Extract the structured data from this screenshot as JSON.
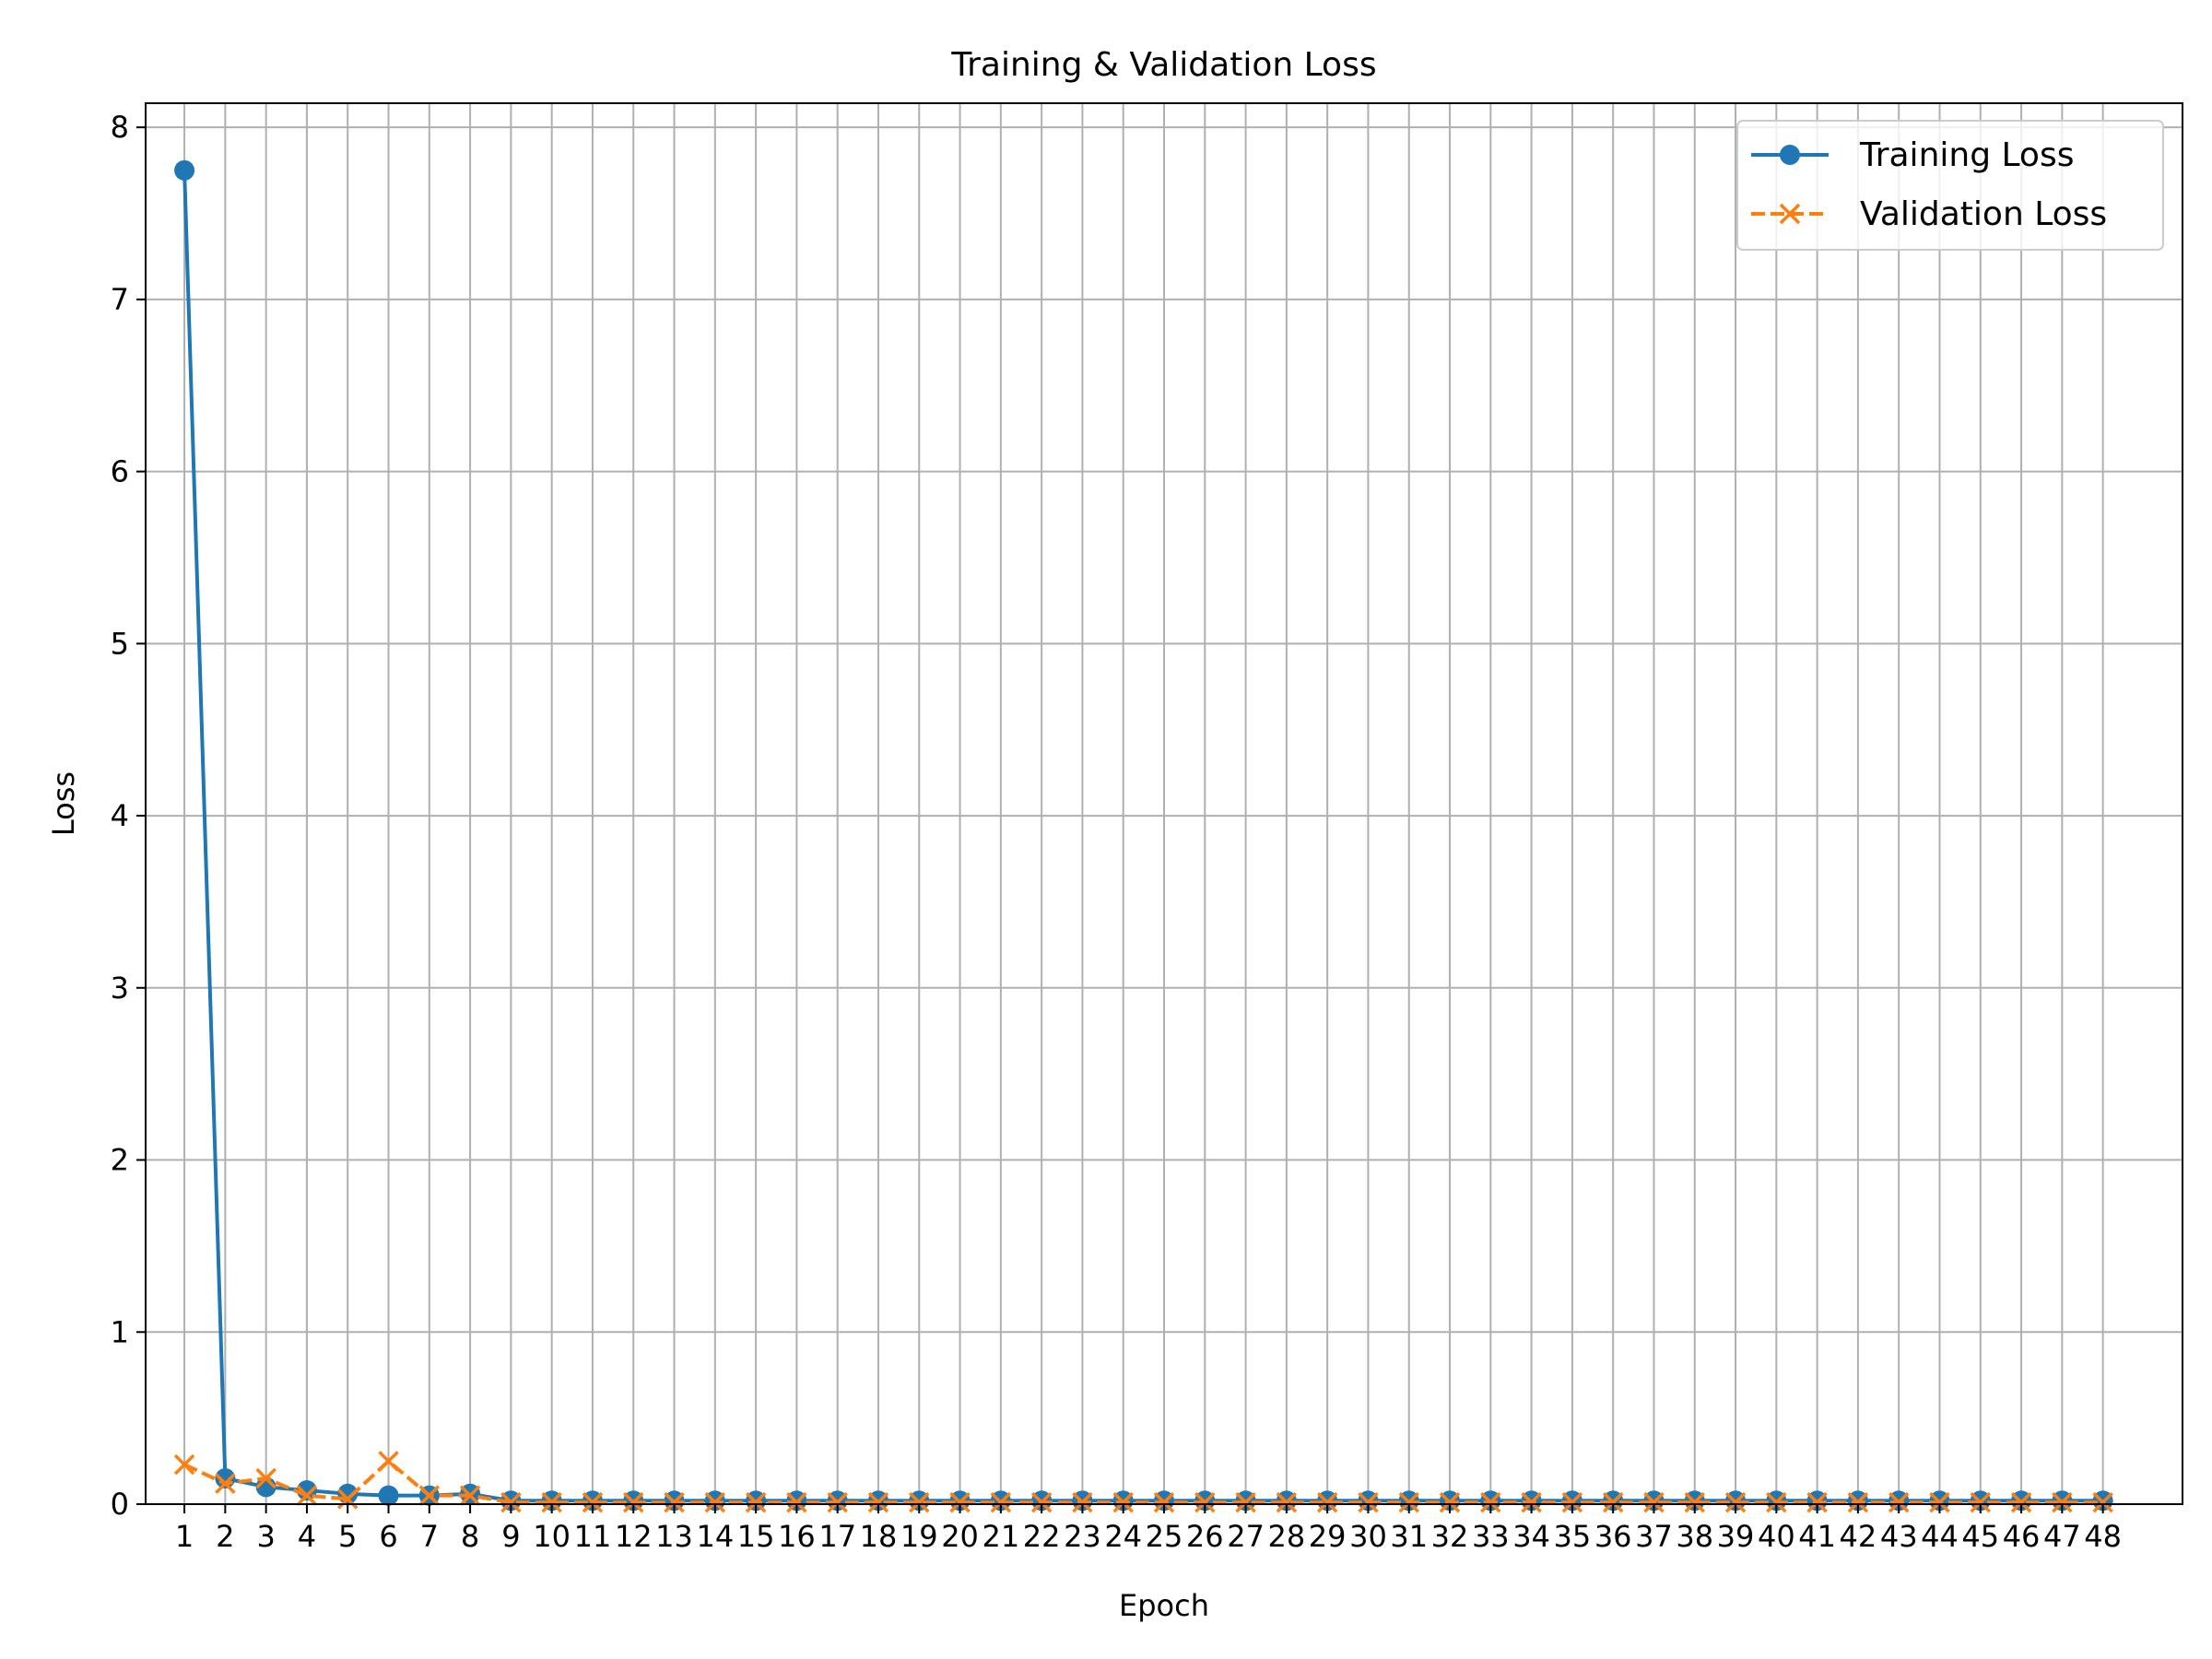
{
  "chart_data": {
    "type": "line",
    "title": "Training & Validation Loss",
    "xlabel": "Epoch",
    "ylabel": "Loss",
    "xlim": [
      0.05,
      49.95
    ],
    "ylim": [
      0,
      8.14
    ],
    "x": [
      1,
      2,
      3,
      4,
      5,
      6,
      7,
      8,
      9,
      10,
      11,
      12,
      13,
      14,
      15,
      16,
      17,
      18,
      19,
      20,
      21,
      22,
      23,
      24,
      25,
      26,
      27,
      28,
      29,
      30,
      31,
      32,
      33,
      34,
      35,
      36,
      37,
      38,
      39,
      40,
      41,
      42,
      43,
      44,
      45,
      46,
      47,
      48
    ],
    "x_ticks": [
      "1",
      "2",
      "3",
      "4",
      "5",
      "6",
      "7",
      "8",
      "9",
      "10",
      "11",
      "12",
      "13",
      "14",
      "15",
      "16",
      "17",
      "18",
      "19",
      "20",
      "21",
      "22",
      "23",
      "24",
      "25",
      "26",
      "27",
      "28",
      "29",
      "30",
      "31",
      "32",
      "33",
      "34",
      "35",
      "36",
      "37",
      "38",
      "39",
      "40",
      "41",
      "42",
      "43",
      "44",
      "45",
      "46",
      "47",
      "48"
    ],
    "y_ticks": [
      0,
      1,
      2,
      3,
      4,
      5,
      6,
      7,
      8
    ],
    "grid": true,
    "legend_position": "top-right",
    "series": [
      {
        "name": "Training Loss",
        "color": "#1f77b4",
        "line_style": "solid",
        "marker": "circle",
        "values": [
          7.75,
          0.15,
          0.1,
          0.08,
          0.06,
          0.05,
          0.05,
          0.06,
          0.02,
          0.02,
          0.02,
          0.02,
          0.02,
          0.02,
          0.02,
          0.02,
          0.02,
          0.02,
          0.02,
          0.02,
          0.02,
          0.02,
          0.02,
          0.02,
          0.02,
          0.02,
          0.02,
          0.02,
          0.02,
          0.02,
          0.02,
          0.02,
          0.02,
          0.02,
          0.02,
          0.02,
          0.02,
          0.02,
          0.02,
          0.02,
          0.02,
          0.02,
          0.02,
          0.02,
          0.02,
          0.02,
          0.02,
          0.02
        ]
      },
      {
        "name": "Validation Loss",
        "color": "#ff7f0e",
        "line_style": "dashed",
        "marker": "x",
        "values": [
          0.23,
          0.12,
          0.15,
          0.05,
          0.03,
          0.25,
          0.05,
          0.05,
          0.01,
          0.01,
          0.01,
          0.01,
          0.01,
          0.01,
          0.01,
          0.01,
          0.01,
          0.01,
          0.01,
          0.01,
          0.01,
          0.01,
          0.01,
          0.01,
          0.01,
          0.01,
          0.01,
          0.01,
          0.01,
          0.01,
          0.01,
          0.01,
          0.01,
          0.01,
          0.01,
          0.01,
          0.01,
          0.01,
          0.01,
          0.01,
          0.01,
          0.01,
          0.01,
          0.01,
          0.01,
          0.01,
          0.01,
          0.01
        ]
      }
    ]
  }
}
